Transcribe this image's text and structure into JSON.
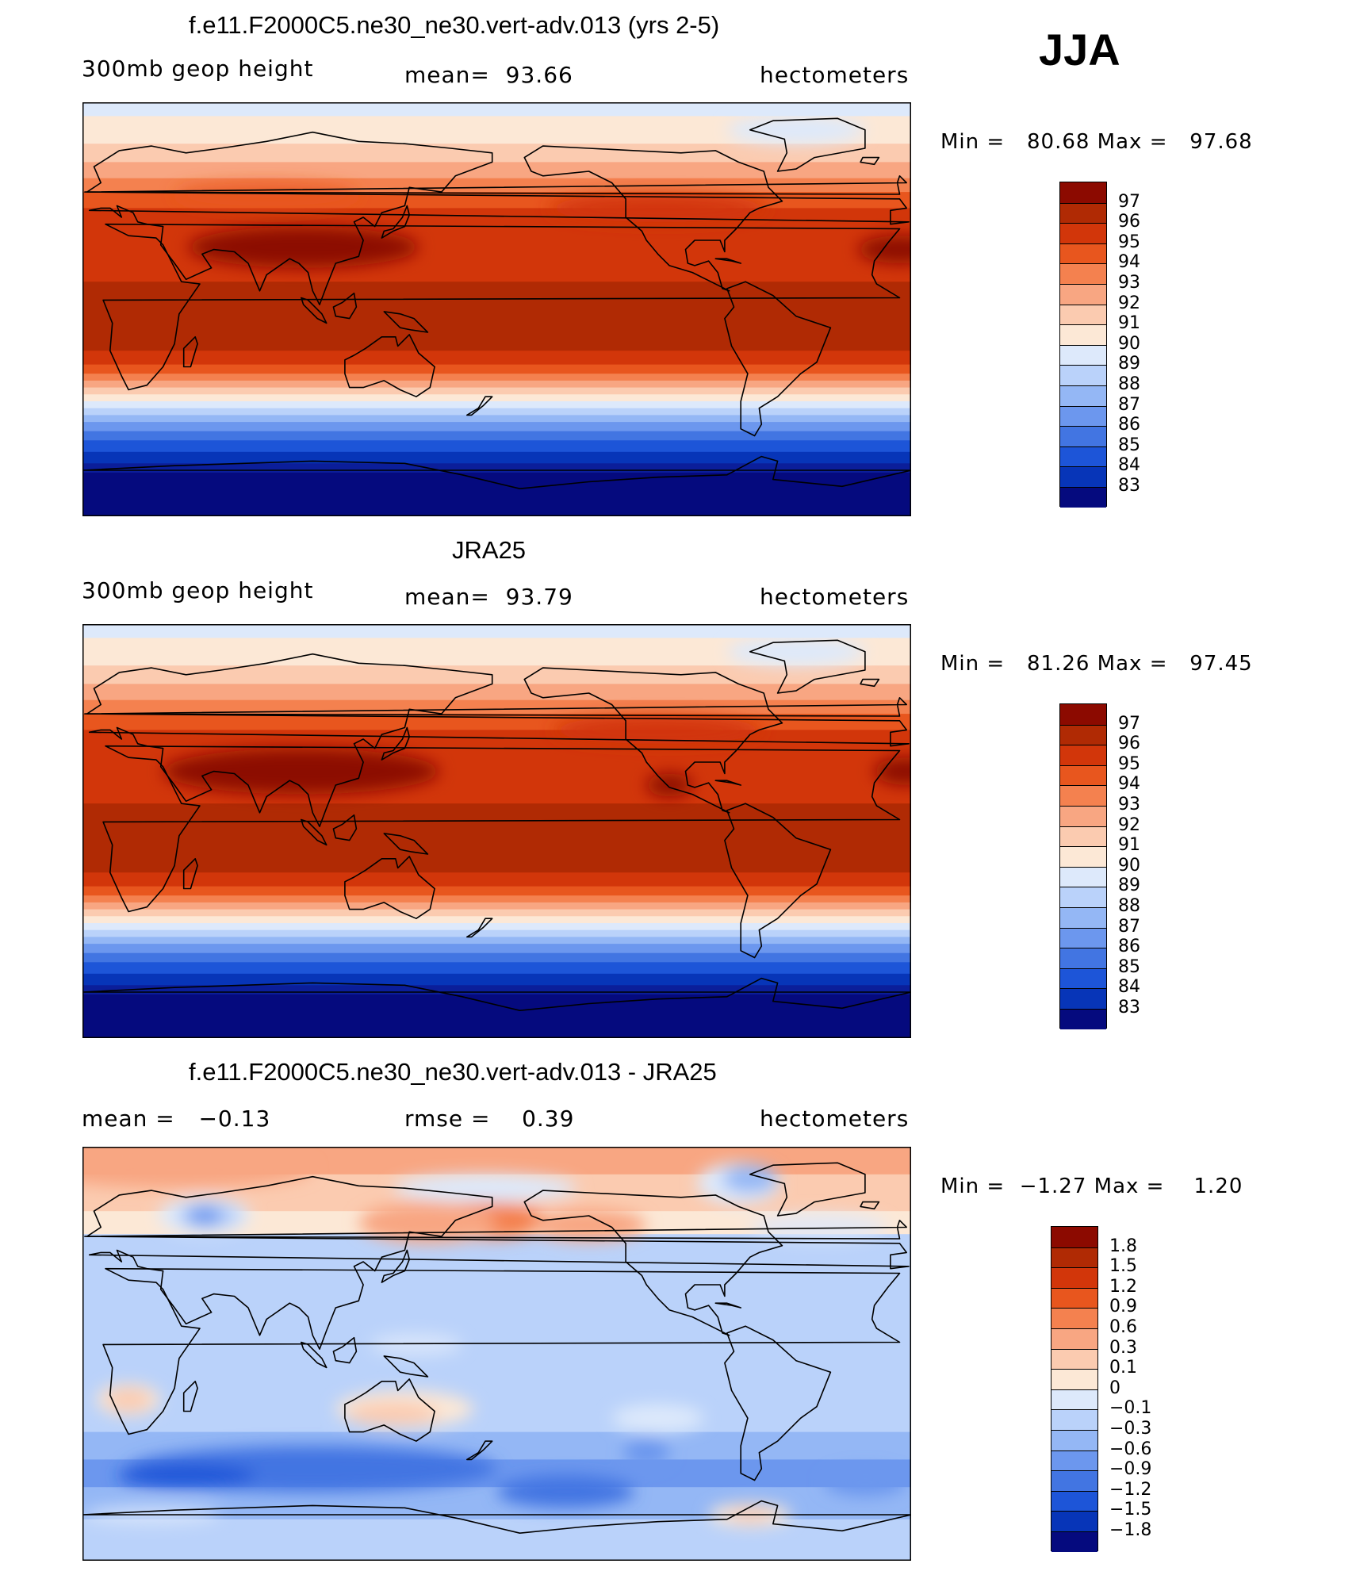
{
  "season": "JJA",
  "colors": {
    "warm": [
      "#fce8d6",
      "#fbcbb0",
      "#f8a682",
      "#f4814f",
      "#e8561e",
      "#d2360a",
      "#b02a04",
      "#8c0a00"
    ],
    "cool": [
      "#dde9fb",
      "#bad2fa",
      "#94b7f5",
      "#6c97ee",
      "#4275e2",
      "#1d55d8",
      "#0735b8",
      "#0b1e9a",
      "#050a7e"
    ],
    "land": "#000000"
  },
  "panels": [
    {
      "title": "f.e11.F2000C5.ne30_ne30.vert-adv.013 (yrs 2-5)",
      "left": "300mb geop height",
      "center": "mean=  93.66",
      "right": "hectometers",
      "minmax": "Min =   80.68 Max =   97.68"
    },
    {
      "title": "JRA25",
      "left": "300mb geop height",
      "center": "mean=  93.79",
      "right": "hectometers",
      "minmax": "Min =   81.26 Max =   97.45"
    },
    {
      "title": "f.e11.F2000C5.ne30_ne30.vert-adv.013 - JRA25",
      "left": "mean =   −0.13",
      "center": "rmse =    0.39",
      "right": "hectometers",
      "minmax": "Min =  −1.27 Max =    1.20"
    }
  ],
  "chart_data": [
    {
      "type": "heatmap",
      "title": "f.e11.F2000C5.ne30_ne30.vert-adv.013 (yrs 2-5)",
      "variable": "300mb geop height",
      "units": "hectometers",
      "mean": 93.66,
      "min": 80.68,
      "max": 97.68,
      "colorbar_levels": [
        "97",
        "96",
        "95",
        "94",
        "93",
        "92",
        "91",
        "90",
        "89",
        "88",
        "87",
        "86",
        "85",
        "84",
        "83"
      ],
      "colorbar_colors": [
        "#8c0a00",
        "#b02a04",
        "#d2360a",
        "#e8561e",
        "#f4814f",
        "#f8a682",
        "#fbcbb0",
        "#fce8d6",
        "#dde9fb",
        "#bad2fa",
        "#94b7f5",
        "#6c97ee",
        "#4275e2",
        "#1d55d8",
        "#0735b8",
        "#050a7e"
      ]
    },
    {
      "type": "heatmap",
      "title": "JRA25",
      "variable": "300mb geop height",
      "units": "hectometers",
      "mean": 93.79,
      "min": 81.26,
      "max": 97.45,
      "colorbar_levels": [
        "97",
        "96",
        "95",
        "94",
        "93",
        "92",
        "91",
        "90",
        "89",
        "88",
        "87",
        "86",
        "85",
        "84",
        "83"
      ],
      "colorbar_colors": [
        "#8c0a00",
        "#b02a04",
        "#d2360a",
        "#e8561e",
        "#f4814f",
        "#f8a682",
        "#fbcbb0",
        "#fce8d6",
        "#dde9fb",
        "#bad2fa",
        "#94b7f5",
        "#6c97ee",
        "#4275e2",
        "#1d55d8",
        "#0735b8",
        "#050a7e"
      ]
    },
    {
      "type": "heatmap",
      "title": "f.e11.F2000C5.ne30_ne30.vert-adv.013 - JRA25",
      "units": "hectometers",
      "mean": -0.13,
      "rmse": 0.39,
      "min": -1.27,
      "max": 1.2,
      "colorbar_levels": [
        "1.8",
        "1.5",
        "1.2",
        "0.9",
        "0.6",
        "0.3",
        "0.1",
        "0",
        "−0.1",
        "−0.3",
        "−0.6",
        "−0.9",
        "−1.2",
        "−1.5",
        "−1.8"
      ],
      "colorbar_colors": [
        "#8c0a00",
        "#b02a04",
        "#d2360a",
        "#e8561e",
        "#f4814f",
        "#f8a682",
        "#fbcbb0",
        "#fce8d6",
        "#dde9fb",
        "#bad2fa",
        "#94b7f5",
        "#6c97ee",
        "#4275e2",
        "#1d55d8",
        "#0735b8",
        "#050a7e"
      ]
    }
  ]
}
